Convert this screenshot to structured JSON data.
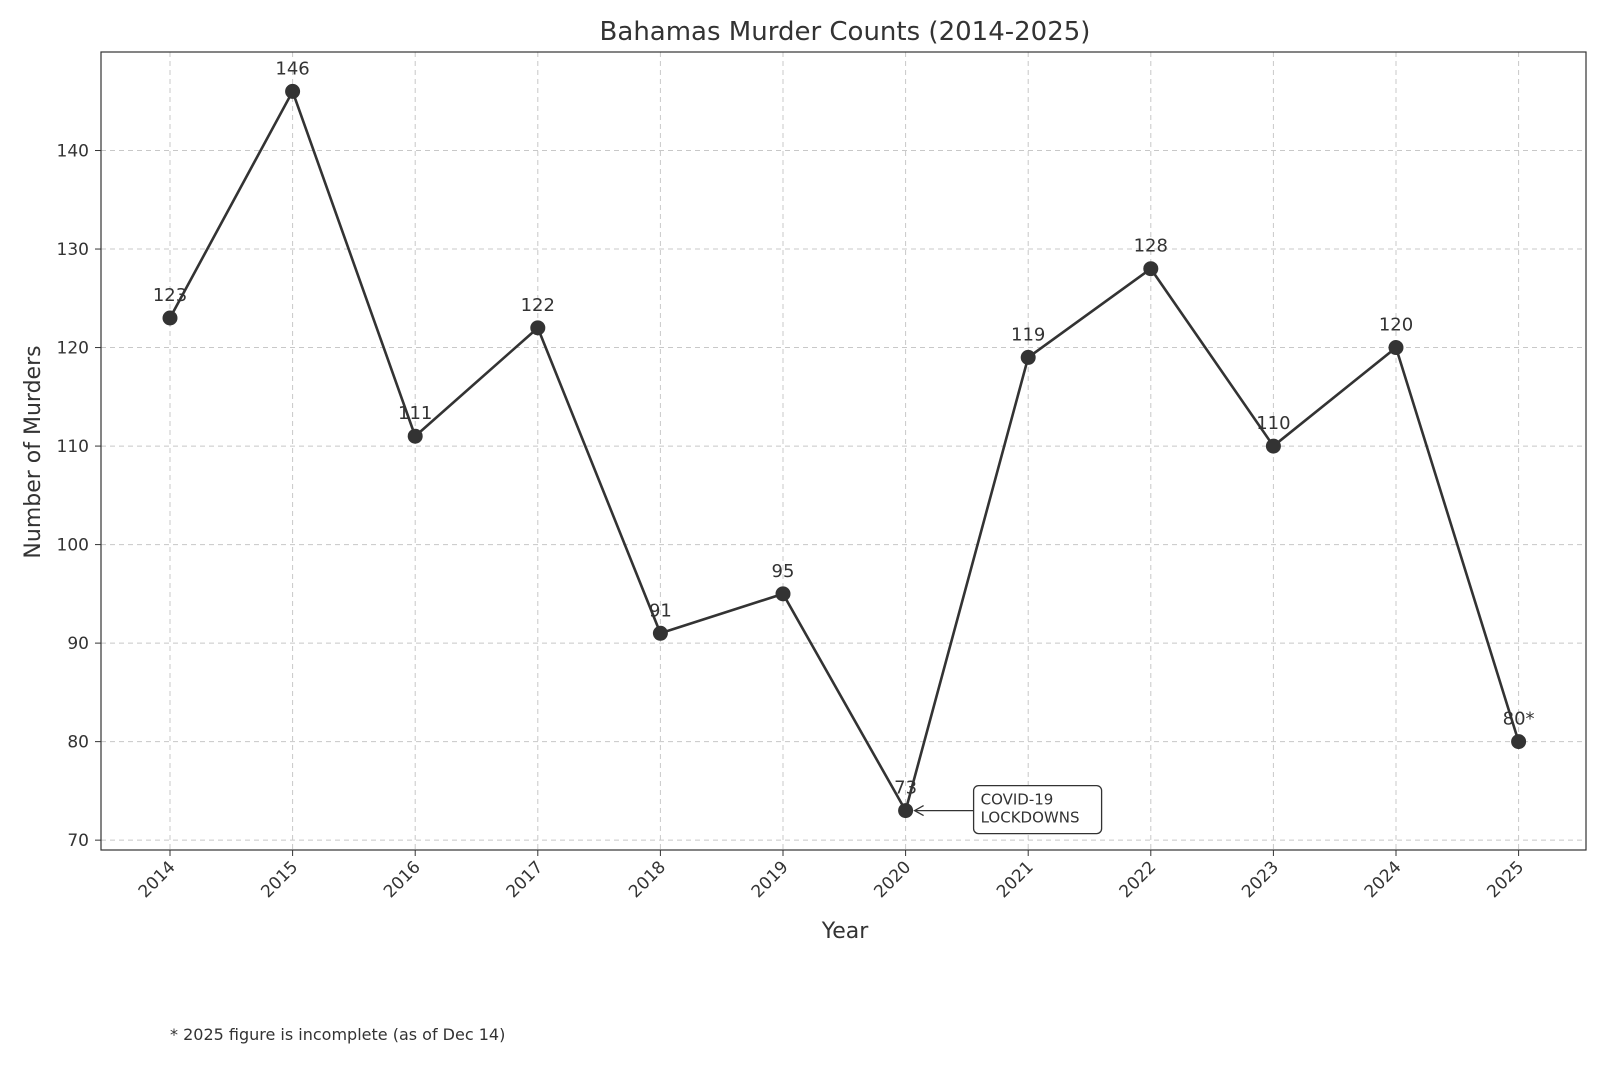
{
  "chart_data": {
    "type": "line",
    "title": "Bahamas Murder Counts (2014-2025)",
    "xlabel": "Year",
    "ylabel": "Number of Murders",
    "x": [
      "2014",
      "2015",
      "2016",
      "2017",
      "2018",
      "2019",
      "2020",
      "2021",
      "2022",
      "2023",
      "2024",
      "2025"
    ],
    "values": [
      123,
      146,
      111,
      122,
      91,
      95,
      73,
      119,
      128,
      110,
      120,
      80
    ],
    "data_labels": [
      "123",
      "146",
      "111",
      "122",
      "91",
      "95",
      "73",
      "119",
      "128",
      "110",
      "120",
      "80*"
    ],
    "ylim": [
      69,
      150
    ],
    "yticks": [
      70,
      80,
      90,
      100,
      110,
      120,
      130,
      140
    ],
    "grid": true,
    "annotation": {
      "x": "2020",
      "y": 73,
      "lines": [
        "COVID-19",
        "LOCKDOWNS"
      ]
    },
    "footnote": "* 2025 figure is incomplete (as of Dec 14)",
    "colors": {
      "line": "#333333",
      "grid": "#c8c8c8"
    }
  }
}
